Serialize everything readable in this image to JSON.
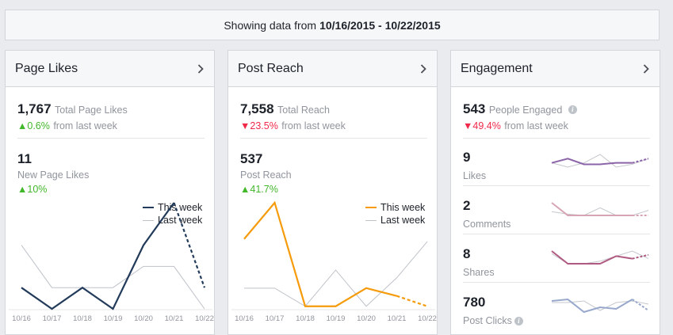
{
  "banner": {
    "prefix": "Showing data from",
    "range": "10/16/2015 - 10/22/2015"
  },
  "page_likes": {
    "title": "Page Likes",
    "total_value": "1,767",
    "total_label": "Total Page Likes",
    "total_change": "0.6%",
    "total_change_suffix": "from last week",
    "new_value": "11",
    "new_label": "New Page Likes",
    "new_change": "10%",
    "legend_this": "This week",
    "legend_last": "Last week",
    "color_this": "#233b5a"
  },
  "post_reach": {
    "title": "Post Reach",
    "total_value": "7,558",
    "total_label": "Total Reach",
    "total_change": "23.5%",
    "total_change_suffix": "from last week",
    "sub_value": "537",
    "sub_label": "Post Reach",
    "sub_change": "41.7%",
    "legend_this": "This week",
    "legend_last": "Last week",
    "color_this": "#f59b0c"
  },
  "engagement": {
    "title": "Engagement",
    "total_value": "543",
    "total_label": "People Engaged",
    "total_change": "49.4%",
    "total_change_suffix": "from last week",
    "rows": [
      {
        "value": "9",
        "label": "Likes",
        "color": "#8b64a8"
      },
      {
        "value": "2",
        "label": "Comments",
        "color": "#d6a4b3"
      },
      {
        "value": "8",
        "label": "Shares",
        "color": "#b05a82"
      },
      {
        "value": "780",
        "label": "Post Clicks",
        "color": "#98a8cc"
      }
    ]
  },
  "chart_data": [
    {
      "type": "line",
      "x": [
        "10/16",
        "10/17",
        "10/18",
        "10/19",
        "10/20",
        "10/21",
        "10/22"
      ],
      "series": [
        {
          "name": "This week",
          "values": [
            2,
            0,
            2,
            0,
            6,
            10,
            2
          ]
        },
        {
          "name": "Last week",
          "values": [
            6,
            2,
            2,
            2,
            4,
            4,
            0
          ]
        }
      ],
      "ylim": [
        0,
        10
      ]
    },
    {
      "type": "line",
      "x": [
        "10/16",
        "10/17",
        "10/18",
        "10/19",
        "10/20",
        "10/21",
        "10/22"
      ],
      "series": [
        {
          "name": "This week",
          "values": [
            135,
            205,
            5,
            5,
            40,
            25,
            5
          ]
        },
        {
          "name": "Last week",
          "values": [
            40,
            40,
            5,
            75,
            5,
            60,
            130
          ]
        }
      ],
      "ylim": [
        0,
        205
      ]
    },
    {
      "type": "line",
      "series": [
        {
          "name": "Likes",
          "values": [
            5,
            8,
            4,
            4,
            5,
            5,
            8
          ],
          "last": [
            5,
            2,
            5,
            11,
            2,
            4,
            8
          ]
        },
        {
          "name": "Comments",
          "values": [
            12,
            2,
            2,
            2,
            2,
            2,
            2
          ],
          "last": [
            5,
            3,
            2,
            8,
            2,
            2,
            6
          ]
        },
        {
          "name": "Shares",
          "values": [
            12,
            2,
            2,
            2,
            8,
            6,
            9
          ],
          "last": [
            10,
            2,
            2,
            4,
            8,
            12,
            6
          ]
        },
        {
          "name": "Post Clicks",
          "values": [
            780,
            790,
            710,
            740,
            730,
            790,
            720
          ],
          "last": [
            770,
            770,
            780,
            720,
            770,
            780,
            760
          ]
        }
      ]
    }
  ]
}
